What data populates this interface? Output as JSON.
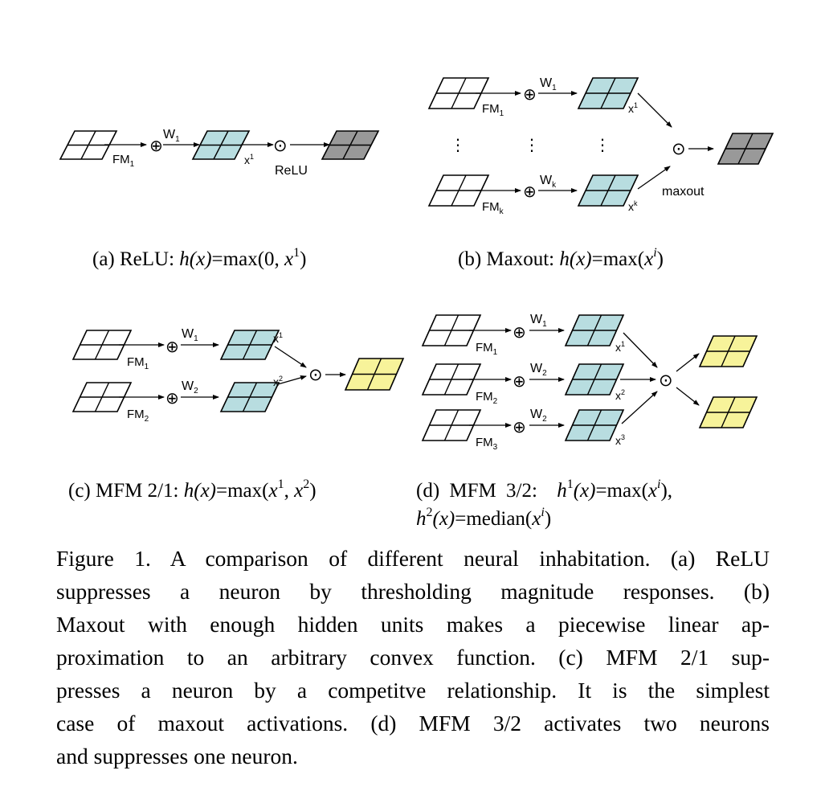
{
  "colors": {
    "blue": "#b8dde0",
    "gray": "#999999",
    "yellow": "#f7f39a",
    "stroke": "#000000"
  },
  "panels": {
    "a": {
      "fm": [
        "FM",
        "1"
      ],
      "w": [
        "W",
        "1"
      ],
      "x": [
        "x",
        "1"
      ],
      "op_label": "ReLU",
      "caption": {
        "tag": "(a)",
        "name": "ReLU:",
        "h": "h",
        "arg": "(x)",
        "eq": "=max(0,",
        "xv": "x",
        "sup": "1",
        "close": ")"
      }
    },
    "b": {
      "fm": [
        [
          "FM",
          "1"
        ],
        [
          "FM",
          "k"
        ]
      ],
      "w": [
        [
          "W",
          "1"
        ],
        [
          "W",
          "k"
        ]
      ],
      "x": [
        [
          "x",
          "1"
        ],
        [
          "x",
          "k"
        ]
      ],
      "op_label": "maxout",
      "dots": "⋮",
      "caption": {
        "tag": "(b)",
        "name": "Maxout:",
        "h": "h",
        "arg": "(x)",
        "eq": "=max(",
        "xv": "x",
        "sup": "i",
        "close": ")"
      }
    },
    "c": {
      "fm": [
        [
          "FM",
          "1"
        ],
        [
          "FM",
          "2"
        ]
      ],
      "w": [
        [
          "W",
          "1"
        ],
        [
          "W",
          "2"
        ]
      ],
      "x": [
        [
          "x",
          "1"
        ],
        [
          "x",
          "2"
        ]
      ],
      "caption": {
        "tag": "(c)",
        "name": "MFM 2/1:",
        "h": "h",
        "arg": "(x)",
        "eq": "=max(",
        "x1": "x",
        "s1": "1",
        "comma": ",",
        "x2": "x",
        "s2": "2",
        "close": ")"
      }
    },
    "d": {
      "fm": [
        [
          "FM",
          "1"
        ],
        [
          "FM",
          "2"
        ],
        [
          "FM",
          "3"
        ]
      ],
      "w": [
        [
          "W",
          "1"
        ],
        [
          "W",
          "2"
        ],
        [
          "W",
          "2"
        ]
      ],
      "x": [
        [
          "x",
          "1"
        ],
        [
          "x",
          "2"
        ],
        [
          "x",
          "3"
        ]
      ],
      "caption": {
        "tag": "(d)",
        "name": "MFM",
        "ratio": "3/2:",
        "h1": "h",
        "h1sup": "1",
        "arg1": "(x)",
        "eq1": "=max(",
        "xv1": "x",
        "sup1": "i",
        "close1": "),",
        "h2": "h",
        "h2sup": "2",
        "arg2": "(x)",
        "eq2": "=median(",
        "xv2": "x",
        "sup2": "i",
        "close2": ")"
      }
    }
  },
  "symbols": {
    "plus": "⊕",
    "op": "⊙"
  },
  "caption_lines": [
    "Figure 1. A comparison of different neural inhabitation. (a) ReLU",
    "suppresses a neuron by thresholding magnitude responses. (b)",
    "Maxout with enough hidden units makes a piecewise linear ap-",
    "proximation to an arbitrary convex function. (c) MFM 2/1 sup-",
    "presses a neuron by a competitve relationship. It is the simplest",
    "case of maxout activations. (d) MFM 3/2 activates two neurons",
    "and suppresses one neuron."
  ]
}
